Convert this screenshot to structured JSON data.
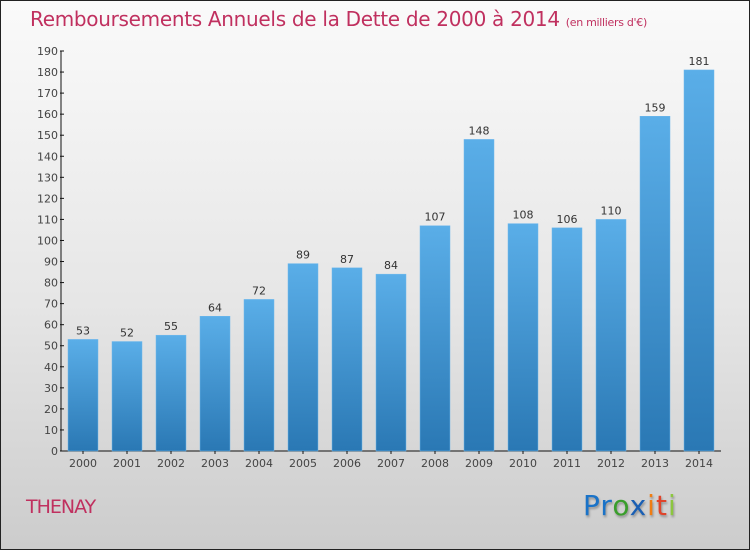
{
  "chart_data": {
    "type": "bar",
    "title": "Remboursements Annuels de la Dette de 2000 à 2014",
    "unit_label": "(en milliers d'€)",
    "xlabel": "",
    "ylabel": "",
    "categories": [
      "2000",
      "2001",
      "2002",
      "2003",
      "2004",
      "2005",
      "2006",
      "2007",
      "2008",
      "2009",
      "2010",
      "2011",
      "2012",
      "2013",
      "2014"
    ],
    "values": [
      53,
      52,
      55,
      64,
      72,
      89,
      87,
      84,
      107,
      148,
      108,
      106,
      110,
      159,
      181
    ],
    "ylim": [
      0,
      190
    ],
    "yticks": [
      0,
      10,
      20,
      30,
      40,
      50,
      60,
      70,
      80,
      90,
      100,
      110,
      120,
      130,
      140,
      150,
      160,
      170,
      180,
      190
    ],
    "grid": false,
    "bar_color_top": "#5aaee8",
    "bar_color_bottom": "#2a78b4"
  },
  "footer": {
    "commune": "THENAY",
    "logo": [
      {
        "ch": "P",
        "color": "#1a73c8"
      },
      {
        "ch": "r",
        "color": "#1a73c8"
      },
      {
        "ch": "o",
        "color": "#3a9e2c"
      },
      {
        "ch": "x",
        "color": "#1a5fb4"
      },
      {
        "ch": "i",
        "color": "#f07d12"
      },
      {
        "ch": "t",
        "color": "#e0442a"
      },
      {
        "ch": "i",
        "color": "#8cc63f"
      }
    ]
  }
}
